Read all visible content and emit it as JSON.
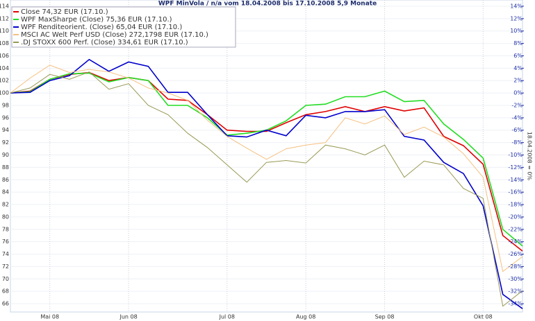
{
  "chart_data": {
    "type": "line",
    "title": "WPF MinVola / n/a vom 18.04.2008 bis 17.10.2008 5,9 Monate",
    "y2_label": "18.04.2008 = 0%",
    "categories": [
      null,
      null,
      "Mai 08",
      null,
      null,
      null,
      "Jun 08",
      null,
      null,
      null,
      null,
      "Jul 08",
      null,
      null,
      null,
      "Aug 08",
      null,
      null,
      null,
      "Sep 08",
      null,
      null,
      null,
      null,
      "Okt 08",
      null,
      null
    ],
    "series": [
      {
        "name": "Close 74,32 EUR (17.10.)",
        "color": "#e00000",
        "values": [
          100,
          100.3,
          102.2,
          103,
          103.3,
          102,
          102.5,
          102,
          99,
          98.8,
          96.5,
          94,
          93.8,
          93.8,
          95.2,
          96.5,
          97,
          97.8,
          97,
          97.8,
          97.1,
          97.6,
          93,
          91.5,
          88.5,
          77,
          74.5
        ]
      },
      {
        "name": "WPF MaxSharpe (Close) 75,36 EUR (17.10.)",
        "color": "#22dd22",
        "values": [
          100,
          100.2,
          102.2,
          103.1,
          103.2,
          101.8,
          102.5,
          102,
          98,
          98,
          96,
          93.2,
          93.5,
          94,
          95.5,
          98,
          98.2,
          99.4,
          99.4,
          100.3,
          98.6,
          98.8,
          95,
          92.5,
          89.5,
          78,
          75.3
        ]
      },
      {
        "name": "WPF Renditeorient. (Close) 65,04 EUR (17.10.)",
        "color": "#0000cc",
        "values": [
          100,
          100.1,
          102,
          102.8,
          105.4,
          103.5,
          105,
          104.3,
          100.1,
          100.1,
          96.5,
          93.1,
          92.9,
          94,
          93.1,
          96.4,
          96,
          97,
          97,
          97.3,
          93,
          92.4,
          88.8,
          87,
          81.8,
          67.5,
          65.2
        ]
      },
      {
        "name": "MSCI AC Welt Perf USD (Close) 272,1798 EUR (17.10.)",
        "color": "#f5c080",
        "values": [
          100,
          102.4,
          104.5,
          103.3,
          103.8,
          103.4,
          102.4,
          100.8,
          100,
          98.8,
          95.6,
          93,
          91.1,
          89.3,
          91,
          91.6,
          92,
          96,
          95,
          96.3,
          93.3,
          94.5,
          92.9,
          90.2,
          86.4,
          71.2,
          73.6
        ]
      },
      {
        "name": ".DJ STOXX 600 Perf. (Close) 334,61 EUR (17.10.)",
        "color": "#999955",
        "values": [
          100,
          100.8,
          103,
          102.2,
          103.4,
          100.6,
          101.5,
          98,
          96.5,
          93.5,
          91.2,
          88.4,
          85.6,
          88.8,
          89.1,
          88.7,
          91.6,
          91,
          90,
          91.6,
          86.4,
          89,
          88.4,
          84.6,
          83,
          65.6,
          68.1
        ]
      }
    ],
    "ylim": [
      65,
      115
    ],
    "yticks": [
      66,
      68,
      70,
      72,
      74,
      76,
      78,
      80,
      82,
      84,
      86,
      88,
      90,
      92,
      94,
      96,
      98,
      100,
      102,
      104,
      106,
      108,
      110,
      112,
      114
    ],
    "y2lim": [
      -35,
      15
    ],
    "y2ticks": [
      {
        "value": -34,
        "label": "-34%"
      },
      {
        "value": -32,
        "label": "-32%"
      },
      {
        "value": -30,
        "label": "-30%"
      },
      {
        "value": -28,
        "label": "-28%"
      },
      {
        "value": -26,
        "label": "-26%"
      },
      {
        "value": -24,
        "label": "-24%"
      },
      {
        "value": -22,
        "label": "-22%"
      },
      {
        "value": -20,
        "label": "-20%"
      },
      {
        "value": -18,
        "label": "-18%"
      },
      {
        "value": -16,
        "label": "-16%"
      },
      {
        "value": -14,
        "label": "-14%"
      },
      {
        "value": -12,
        "label": "-12%"
      },
      {
        "value": -10,
        "label": "-10%"
      },
      {
        "value": -8,
        "label": "-8%"
      },
      {
        "value": -6,
        "label": "-6%"
      },
      {
        "value": -4,
        "label": "-4%"
      },
      {
        "value": -2,
        "label": "-2%"
      },
      {
        "value": 0,
        "label": "0%"
      },
      {
        "value": 2,
        "label": "2%"
      },
      {
        "value": 4,
        "label": "4%"
      },
      {
        "value": 6,
        "label": "6%"
      },
      {
        "value": 8,
        "label": "8%"
      },
      {
        "value": 10,
        "label": "10%"
      },
      {
        "value": 12,
        "label": "12%"
      },
      {
        "value": 14,
        "label": "14%"
      }
    ],
    "y2_color": "#2233aa",
    "grid": true,
    "legend": "top-left"
  }
}
